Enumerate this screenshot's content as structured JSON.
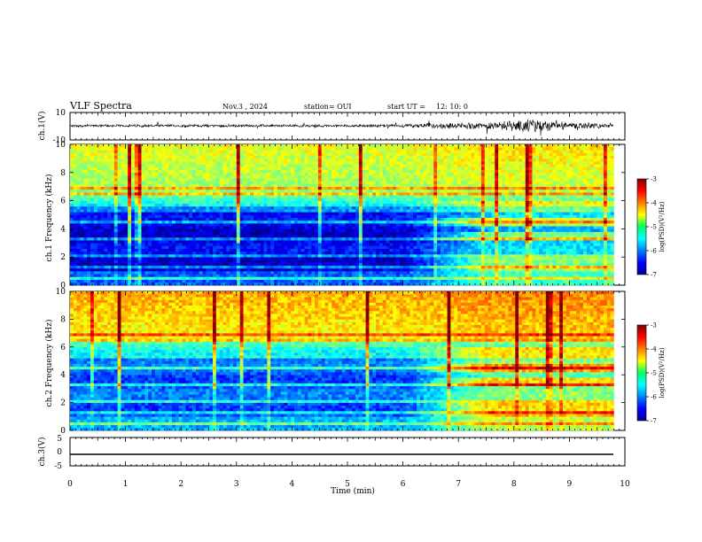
{
  "header": {
    "title": "VLF Spectra",
    "date": "Nov.3 , 2024",
    "station": "station= OUI",
    "start_label": "start UT =",
    "start_time": "12: 10: 0"
  },
  "chart_data": [
    {
      "type": "line",
      "panel": "ch1-waveform",
      "ylabel": "ch.1(V)",
      "ylim": [
        -10,
        10
      ],
      "yticks": [
        "10",
        "-10"
      ],
      "x": [
        0,
        1,
        2,
        3,
        4,
        5,
        6,
        6.5,
        7,
        7.5,
        8,
        8.3,
        8.6,
        9,
        9.8
      ],
      "amplitude": [
        0.8,
        0.8,
        0.8,
        0.8,
        0.8,
        0.8,
        1.0,
        1.5,
        1.8,
        2.2,
        3.0,
        4.5,
        3.5,
        2.0,
        1.5
      ],
      "xlim": [
        0,
        9.8
      ]
    },
    {
      "type": "heatmap",
      "panel": "ch1-spectrogram",
      "ylabel": "ch.1 Frequency (kHz)",
      "xlim": [
        0,
        10
      ],
      "ylim": [
        0,
        10
      ],
      "yticks": [
        "0",
        "2",
        "4",
        "6",
        "8",
        "10"
      ],
      "colorbar": {
        "label": "log(PSD)(V²/Hz)",
        "range": [
          -7,
          -3
        ],
        "ticks": [
          "-3",
          "-4",
          "-5",
          "-6",
          "-7"
        ]
      }
    },
    {
      "type": "heatmap",
      "panel": "ch2-spectrogram",
      "ylabel": "ch.2 Frequency (kHz)",
      "xlim": [
        0,
        10
      ],
      "ylim": [
        0,
        10
      ],
      "yticks": [
        "0",
        "2",
        "4",
        "6",
        "8",
        "10"
      ],
      "colorbar": {
        "label": "log(PSD)(V²/Hz)",
        "range": [
          -7,
          -3
        ],
        "ticks": [
          "-3",
          "-4",
          "-5",
          "-6",
          "-7"
        ]
      }
    },
    {
      "type": "line",
      "panel": "ch3-waveform",
      "ylabel": "ch.3(V)",
      "ylim": [
        -5,
        5
      ],
      "yticks": [
        "5",
        "0",
        "-5"
      ],
      "x": [
        0,
        9.8
      ],
      "y": [
        -1.5,
        -1.5
      ]
    }
  ],
  "xaxis": {
    "label": "Time (min)",
    "ticks": [
      "0",
      "1",
      "2",
      "3",
      "4",
      "5",
      "6",
      "7",
      "8",
      "9",
      "10"
    ]
  }
}
